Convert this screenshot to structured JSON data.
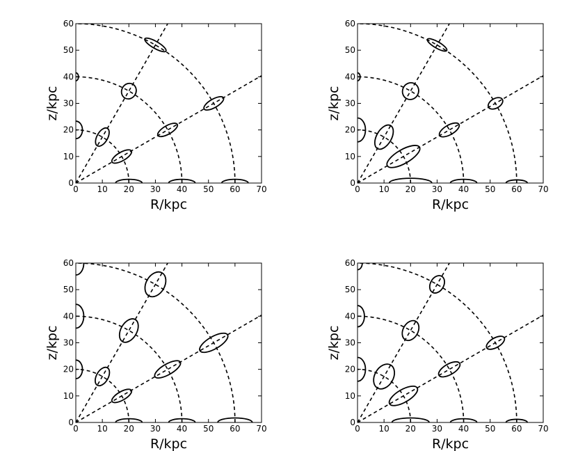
{
  "chart_data": [
    {
      "type": "scatter",
      "title": "",
      "xlabel": "R/kpc",
      "ylabel": "z/kpc",
      "xlim": [
        0,
        70
      ],
      "ylim": [
        0,
        60
      ],
      "xticks": [
        0,
        10,
        20,
        30,
        40,
        50,
        60,
        70
      ],
      "yticks": [
        0,
        10,
        20,
        30,
        40,
        50,
        60
      ],
      "grid": false,
      "legend": "none",
      "guide_arcs_radius": [
        20,
        40,
        60
      ],
      "guide_rays_angle_deg": [
        0,
        30,
        60,
        90
      ],
      "series": [
        {
          "values": [
            {
              "R": 20,
              "z": 0,
              "a": 5,
              "b": 1.4,
              "angle": 0
            },
            {
              "R": 40,
              "z": 0,
              "a": 5,
              "b": 1.4,
              "angle": 0
            },
            {
              "R": 60,
              "z": 0,
              "a": 5,
              "b": 1.4,
              "angle": 0
            },
            {
              "R": 17.3,
              "z": 10,
              "a": 4.2,
              "b": 1.6,
              "angle": 30
            },
            {
              "R": 34.6,
              "z": 20,
              "a": 4.2,
              "b": 1.6,
              "angle": 30
            },
            {
              "R": 52,
              "z": 30,
              "a": 4.2,
              "b": 1.6,
              "angle": 30
            },
            {
              "R": 10,
              "z": 17.3,
              "a": 3.8,
              "b": 2,
              "angle": 60
            },
            {
              "R": 20,
              "z": 34.6,
              "a": 3,
              "b": 2.7,
              "angle": 60
            },
            {
              "R": 30,
              "z": 52,
              "a": 4.6,
              "b": 1.3,
              "angle": -30
            },
            {
              "R": 0,
              "z": 20,
              "a": 3.3,
              "b": 2.5,
              "angle": 90
            },
            {
              "R": 0,
              "z": 40,
              "a": 1.5,
              "b": 1,
              "angle": 90
            }
          ]
        }
      ]
    },
    {
      "type": "scatter",
      "title": "",
      "xlabel": "R/kpc",
      "ylabel": "z/kpc",
      "xlim": [
        0,
        70
      ],
      "ylim": [
        0,
        60
      ],
      "xticks": [
        0,
        10,
        20,
        30,
        40,
        50,
        60,
        70
      ],
      "yticks": [
        0,
        10,
        20,
        30,
        40,
        50,
        60
      ],
      "grid": false,
      "legend": "none",
      "guide_arcs_radius": [
        20,
        40,
        60
      ],
      "guide_rays_angle_deg": [
        0,
        30,
        60,
        90
      ],
      "series": [
        {
          "values": [
            {
              "R": 20,
              "z": 0,
              "a": 8,
              "b": 1.8,
              "angle": 0
            },
            {
              "R": 40,
              "z": 0,
              "a": 5,
              "b": 1.4,
              "angle": 0
            },
            {
              "R": 60,
              "z": 0,
              "a": 4,
              "b": 1.2,
              "angle": 0
            },
            {
              "R": 17.3,
              "z": 10,
              "a": 7,
              "b": 2.6,
              "angle": 30
            },
            {
              "R": 34.6,
              "z": 20,
              "a": 4.2,
              "b": 1.8,
              "angle": 30
            },
            {
              "R": 52,
              "z": 30,
              "a": 3,
              "b": 1.8,
              "angle": 30
            },
            {
              "R": 10,
              "z": 17.3,
              "a": 5,
              "b": 2.8,
              "angle": 60
            },
            {
              "R": 20,
              "z": 34.6,
              "a": 3.2,
              "b": 3,
              "angle": 60
            },
            {
              "R": 30,
              "z": 52,
              "a": 4.2,
              "b": 1.2,
              "angle": -30
            },
            {
              "R": 0,
              "z": 20,
              "a": 4.5,
              "b": 3,
              "angle": 90
            },
            {
              "R": 0,
              "z": 40,
              "a": 1.5,
              "b": 1,
              "angle": 90
            }
          ]
        }
      ]
    },
    {
      "type": "scatter",
      "title": "",
      "xlabel": "R/kpc",
      "ylabel": "z/kpc",
      "xlim": [
        0,
        70
      ],
      "ylim": [
        0,
        60
      ],
      "xticks": [
        0,
        10,
        20,
        30,
        40,
        50,
        60,
        70
      ],
      "yticks": [
        0,
        10,
        20,
        30,
        40,
        50,
        60
      ],
      "grid": false,
      "legend": "none",
      "guide_arcs_radius": [
        20,
        40,
        60
      ],
      "guide_rays_angle_deg": [
        0,
        30,
        60,
        90
      ],
      "series": [
        {
          "values": [
            {
              "R": 20,
              "z": 0,
              "a": 5,
              "b": 1.4,
              "angle": 0
            },
            {
              "R": 40,
              "z": 0,
              "a": 5,
              "b": 1.4,
              "angle": 0
            },
            {
              "R": 60,
              "z": 0,
              "a": 6.5,
              "b": 1.7,
              "angle": 0
            },
            {
              "R": 17.3,
              "z": 10,
              "a": 4.2,
              "b": 1.6,
              "angle": 30
            },
            {
              "R": 34.6,
              "z": 20,
              "a": 5.5,
              "b": 2,
              "angle": 30
            },
            {
              "R": 52,
              "z": 30,
              "a": 6,
              "b": 2.3,
              "angle": 30
            },
            {
              "R": 10,
              "z": 17.3,
              "a": 3.8,
              "b": 2.2,
              "angle": 60
            },
            {
              "R": 20,
              "z": 34.6,
              "a": 4.8,
              "b": 3,
              "angle": 60
            },
            {
              "R": 30,
              "z": 52,
              "a": 5,
              "b": 3.5,
              "angle": 60
            },
            {
              "R": 0,
              "z": 20,
              "a": 3.5,
              "b": 2.5,
              "angle": 90
            },
            {
              "R": 0,
              "z": 40,
              "a": 4.5,
              "b": 3,
              "angle": 90
            },
            {
              "R": 0,
              "z": 60,
              "a": 4.5,
              "b": 3,
              "angle": 90
            }
          ]
        }
      ]
    },
    {
      "type": "scatter",
      "title": "",
      "xlabel": "R/kpc",
      "ylabel": "z/kpc",
      "xlim": [
        0,
        70
      ],
      "ylim": [
        0,
        60
      ],
      "xticks": [
        0,
        10,
        20,
        30,
        40,
        50,
        60,
        70
      ],
      "yticks": [
        0,
        10,
        20,
        30,
        40,
        50,
        60
      ],
      "grid": false,
      "legend": "none",
      "guide_arcs_radius": [
        20,
        40,
        60
      ],
      "guide_rays_angle_deg": [
        0,
        30,
        60,
        90
      ],
      "series": [
        {
          "values": [
            {
              "R": 20,
              "z": 0,
              "a": 7,
              "b": 1.7,
              "angle": 0
            },
            {
              "R": 40,
              "z": 0,
              "a": 5,
              "b": 1.4,
              "angle": 0
            },
            {
              "R": 60,
              "z": 0,
              "a": 4,
              "b": 1.2,
              "angle": 0
            },
            {
              "R": 17.3,
              "z": 10,
              "a": 6,
              "b": 2.4,
              "angle": 30
            },
            {
              "R": 34.6,
              "z": 20,
              "a": 4.5,
              "b": 2,
              "angle": 30
            },
            {
              "R": 52,
              "z": 30,
              "a": 3.8,
              "b": 1.8,
              "angle": 30
            },
            {
              "R": 10,
              "z": 17.3,
              "a": 5,
              "b": 3.5,
              "angle": 60
            },
            {
              "R": 20,
              "z": 34.6,
              "a": 4,
              "b": 2.8,
              "angle": 60
            },
            {
              "R": 30,
              "z": 52,
              "a": 3.5,
              "b": 2.5,
              "angle": 60
            },
            {
              "R": 0,
              "z": 20,
              "a": 4.5,
              "b": 3,
              "angle": 90
            },
            {
              "R": 0,
              "z": 40,
              "a": 4,
              "b": 2.6,
              "angle": 90
            },
            {
              "R": 0,
              "z": 60,
              "a": 2.5,
              "b": 1.8,
              "angle": 90
            }
          ]
        }
      ]
    }
  ]
}
